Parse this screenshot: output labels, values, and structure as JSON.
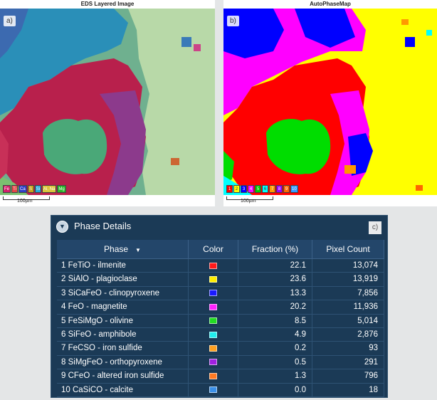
{
  "panel_a": {
    "title": "EDS Layered Image",
    "label": "a)",
    "scale": "100µm",
    "legend": [
      {
        "text": "Fe",
        "color": "#d41e6a"
      },
      {
        "text": "Ti",
        "color": "#e44545"
      },
      {
        "text": "Ca",
        "color": "#2e3ec7"
      },
      {
        "text": "S",
        "color": "#c9a117"
      },
      {
        "text": "Si",
        "color": "#24a8d6"
      },
      {
        "text": "Al, Na",
        "color": "#d9c33a"
      },
      {
        "text": "Mg",
        "color": "#28b428"
      }
    ]
  },
  "panel_b": {
    "title": "AutoPhaseMap",
    "label": "b)",
    "scale": "100µm",
    "legend": [
      {
        "text": "1",
        "color": "#ff0000"
      },
      {
        "text": "2",
        "color": "#ffff00"
      },
      {
        "text": "3",
        "color": "#0000ff"
      },
      {
        "text": "4",
        "color": "#ff00ff"
      },
      {
        "text": "5",
        "color": "#00cc00"
      },
      {
        "text": "6",
        "color": "#00ffff"
      },
      {
        "text": "7",
        "color": "#ff9900"
      },
      {
        "text": "8",
        "color": "#9900ff"
      },
      {
        "text": "9",
        "color": "#ff6600"
      },
      {
        "text": "10",
        "color": "#3399ff"
      }
    ]
  },
  "phase_details": {
    "title": "Phase Details",
    "tag": "c)",
    "columns": [
      "Phase",
      "Color",
      "Fraction (%)",
      "Pixel Count"
    ],
    "rows": [
      {
        "phase": "1 FeTiO - ilmenite",
        "color": "#ff1a1a",
        "fraction": "22.1",
        "pixels": "13,074"
      },
      {
        "phase": "2 SiAlO - plagioclase",
        "color": "#ffee00",
        "fraction": "23.6",
        "pixels": "13,919"
      },
      {
        "phase": "3 SiCaFeO - clinopyroxene",
        "color": "#1a1aff",
        "fraction": "13.3",
        "pixels": "7,856"
      },
      {
        "phase": "4 FeO - magnetite",
        "color": "#ff22ff",
        "fraction": "20.2",
        "pixels": "11,936"
      },
      {
        "phase": "5 FeSiMgO - olivine",
        "color": "#22dd22",
        "fraction": "8.5",
        "pixels": "5,014"
      },
      {
        "phase": "6 SiFeO - amphibole",
        "color": "#22eeee",
        "fraction": "4.9",
        "pixels": "2,876"
      },
      {
        "phase": "7 FeCSO - iron sulfide",
        "color": "#ffa020",
        "fraction": "0.2",
        "pixels": "93"
      },
      {
        "phase": "8 SiMgFeO - orthopyroxene",
        "color": "#a020e0",
        "fraction": "0.5",
        "pixels": "291"
      },
      {
        "phase": "9 CFeO - altered iron sulfide",
        "color": "#ff7a22",
        "fraction": "1.3",
        "pixels": "796"
      },
      {
        "phase": "10 CaSiCO - calcite",
        "color": "#3a8fe8",
        "fraction": "0.0",
        "pixels": "18"
      }
    ]
  }
}
